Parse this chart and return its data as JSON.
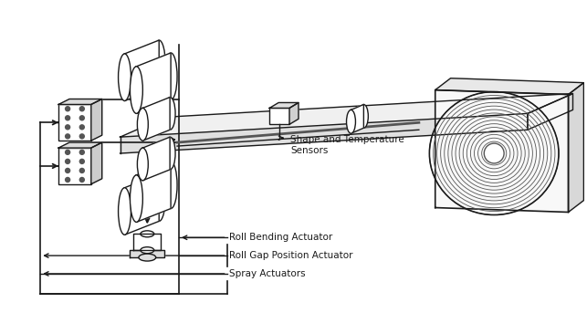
{
  "bg_color": "#ffffff",
  "lc": "#1a1a1a",
  "dg": "#555555",
  "lg": "#cccccc",
  "label_roll_bending": "Roll Bending Actuator",
  "label_roll_gap": "Roll Gap Position Actuator",
  "label_spray": "Spray Actuators",
  "label_sensors": "Shape and Temperature\nSensors",
  "font_size": 7.5,
  "figw": 6.43,
  "figh": 3.43,
  "dpi": 100
}
